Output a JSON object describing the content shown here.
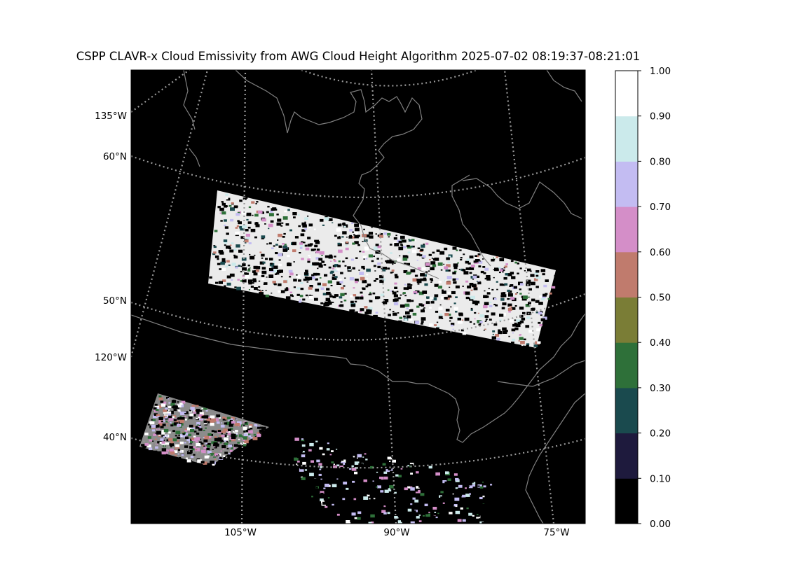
{
  "title": "CSPP CLAVR-x Cloud Emissivity from AWG Cloud Height Algorithm 2025-07-02 08:19:37-08:21:01",
  "map": {
    "background": "#000000",
    "coastline_color": "#808080",
    "graticule_color": "#999999",
    "cloud_color": "#ffffff",
    "labels": {
      "lon_135W": "135°W",
      "lat_60N": "60°N",
      "lat_50N": "50°N",
      "lon_120W": "120°W",
      "lat_40N": "40°N",
      "lon_105W": "105°W",
      "lon_90W": "90°W",
      "lon_75W": "75°W"
    }
  },
  "colorbar": {
    "ticks": [
      "0.00",
      "0.10",
      "0.20",
      "0.30",
      "0.40",
      "0.50",
      "0.60",
      "0.70",
      "0.80",
      "0.90",
      "1.00"
    ],
    "colors": [
      "#000000",
      "#1e1a3d",
      "#1a4a4e",
      "#2e7039",
      "#7a7d36",
      "#c07b6d",
      "#d48ec8",
      "#c3bcf2",
      "#cbeaeb",
      "#ffffff"
    ]
  }
}
